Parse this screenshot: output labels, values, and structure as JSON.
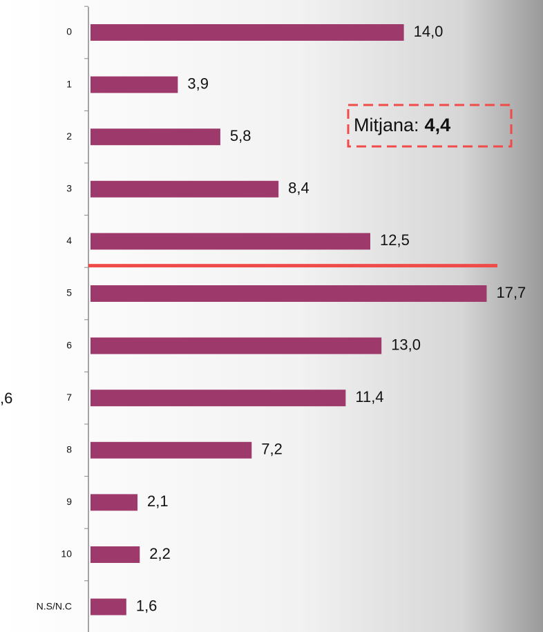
{
  "chart_data": {
    "type": "barh",
    "categories": [
      "0",
      "1",
      "2",
      "3",
      "4",
      "5",
      "6",
      "7",
      "8",
      "9",
      "10",
      "N.S/N.C"
    ],
    "values": [
      14.0,
      3.9,
      5.8,
      8.4,
      12.5,
      17.7,
      13.0,
      11.4,
      7.2,
      2.1,
      2.2,
      1.6
    ],
    "value_labels": [
      "14,0",
      "3,9",
      "5,8",
      "8,4",
      "12,5",
      "17,7",
      "13,0",
      "11,4",
      "7,2",
      "2,1",
      "2,2",
      "1,6"
    ],
    "color": "#9e3a6b",
    "mean_label": "Mitjana:",
    "mean_value": 4.4,
    "mean_value_label": "4,4",
    "mean_color": "#f04a4a",
    "annotations": [
      ",6"
    ]
  }
}
